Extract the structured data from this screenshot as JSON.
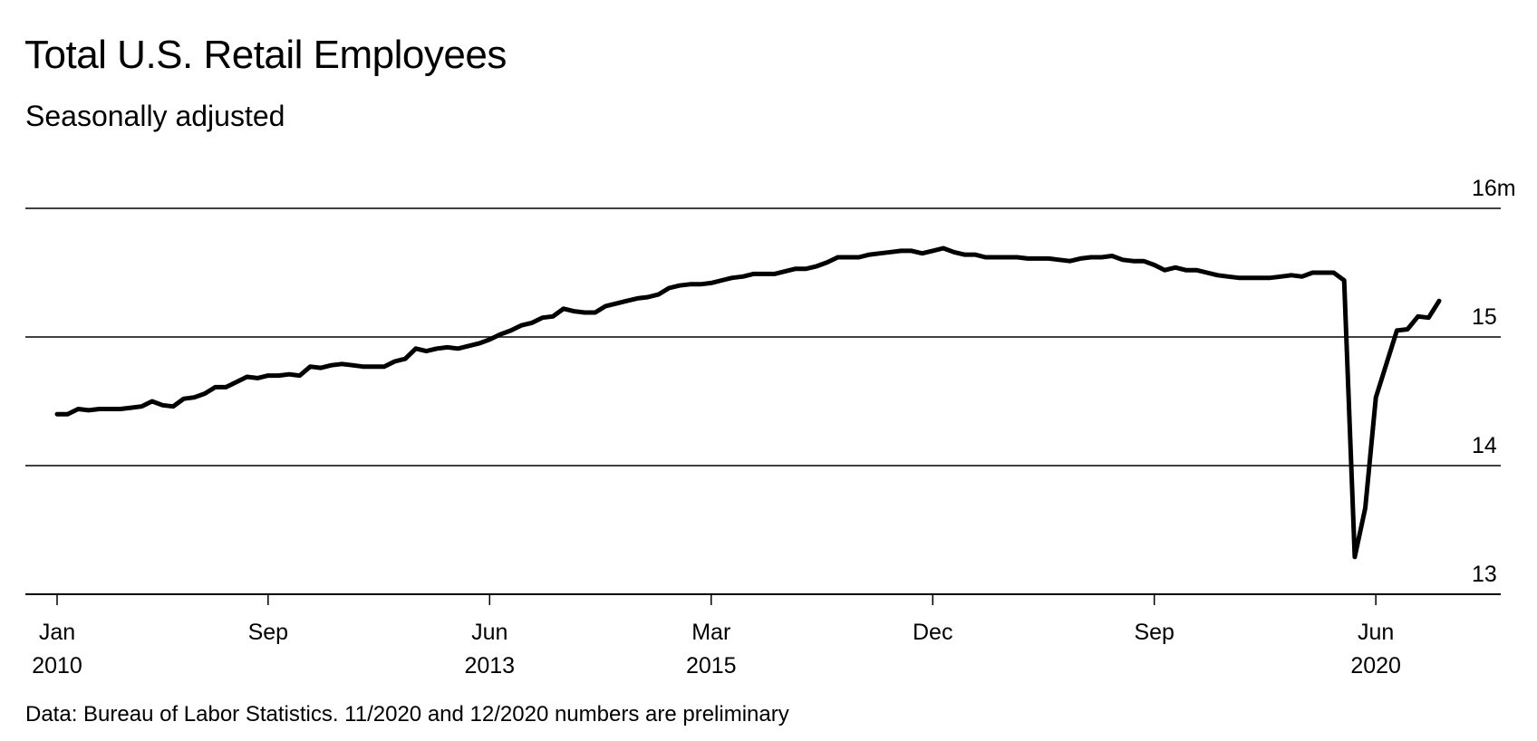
{
  "title": "Total U.S. Retail Employees",
  "subtitle": "Seasonally adjusted",
  "footer": "Data: Bureau of Labor Statistics. 11/2020 and 12/2020 numbers are preliminary",
  "chart_data": {
    "type": "line",
    "title": "Total U.S. Retail Employees",
    "subtitle": "Seasonally adjusted",
    "ylim": [
      13,
      16
    ],
    "y_ticks": [
      {
        "value": 16,
        "label": "16m"
      },
      {
        "value": 15,
        "label": "15"
      },
      {
        "value": 14,
        "label": "14"
      },
      {
        "value": 13,
        "label": "13"
      }
    ],
    "grid": true,
    "x_start": "2010-01",
    "x_end": "2020-12",
    "x_ticks": [
      {
        "date": "2010-01",
        "line1": "Jan",
        "line2": "2010"
      },
      {
        "date": "2011-09",
        "line1": "Sep",
        "line2": ""
      },
      {
        "date": "2013-06",
        "line1": "Jun",
        "line2": "2013"
      },
      {
        "date": "2015-03",
        "line1": "Mar",
        "line2": "2015"
      },
      {
        "date": "2016-12",
        "line1": "Dec",
        "line2": ""
      },
      {
        "date": "2018-09",
        "line1": "Sep",
        "line2": ""
      },
      {
        "date": "2020-06",
        "line1": "Jun",
        "line2": "2020"
      }
    ],
    "series": [
      {
        "color": "#000000",
        "points": [
          [
            "2010-01",
            14.4
          ],
          [
            "2010-02",
            14.4
          ],
          [
            "2010-03",
            14.44
          ],
          [
            "2010-04",
            14.43
          ],
          [
            "2010-05",
            14.44
          ],
          [
            "2010-06",
            14.44
          ],
          [
            "2010-07",
            14.44
          ],
          [
            "2010-08",
            14.45
          ],
          [
            "2010-09",
            14.46
          ],
          [
            "2010-10",
            14.5
          ],
          [
            "2010-11",
            14.47
          ],
          [
            "2010-12",
            14.46
          ],
          [
            "2011-01",
            14.52
          ],
          [
            "2011-02",
            14.53
          ],
          [
            "2011-03",
            14.56
          ],
          [
            "2011-04",
            14.61
          ],
          [
            "2011-05",
            14.61
          ],
          [
            "2011-06",
            14.65
          ],
          [
            "2011-07",
            14.69
          ],
          [
            "2011-08",
            14.68
          ],
          [
            "2011-09",
            14.7
          ],
          [
            "2011-10",
            14.7
          ],
          [
            "2011-11",
            14.71
          ],
          [
            "2011-12",
            14.7
          ],
          [
            "2012-01",
            14.77
          ],
          [
            "2012-02",
            14.76
          ],
          [
            "2012-03",
            14.78
          ],
          [
            "2012-04",
            14.79
          ],
          [
            "2012-05",
            14.78
          ],
          [
            "2012-06",
            14.77
          ],
          [
            "2012-07",
            14.77
          ],
          [
            "2012-08",
            14.77
          ],
          [
            "2012-09",
            14.81
          ],
          [
            "2012-10",
            14.83
          ],
          [
            "2012-11",
            14.91
          ],
          [
            "2012-12",
            14.89
          ],
          [
            "2013-01",
            14.91
          ],
          [
            "2013-02",
            14.92
          ],
          [
            "2013-03",
            14.91
          ],
          [
            "2013-04",
            14.93
          ],
          [
            "2013-05",
            14.95
          ],
          [
            "2013-06",
            14.98
          ],
          [
            "2013-07",
            15.02
          ],
          [
            "2013-08",
            15.05
          ],
          [
            "2013-09",
            15.09
          ],
          [
            "2013-10",
            15.11
          ],
          [
            "2013-11",
            15.15
          ],
          [
            "2013-12",
            15.16
          ],
          [
            "2014-01",
            15.22
          ],
          [
            "2014-02",
            15.2
          ],
          [
            "2014-03",
            15.19
          ],
          [
            "2014-04",
            15.19
          ],
          [
            "2014-05",
            15.24
          ],
          [
            "2014-06",
            15.26
          ],
          [
            "2014-07",
            15.28
          ],
          [
            "2014-08",
            15.3
          ],
          [
            "2014-09",
            15.31
          ],
          [
            "2014-10",
            15.33
          ],
          [
            "2014-11",
            15.38
          ],
          [
            "2014-12",
            15.4
          ],
          [
            "2015-01",
            15.41
          ],
          [
            "2015-02",
            15.41
          ],
          [
            "2015-03",
            15.42
          ],
          [
            "2015-04",
            15.44
          ],
          [
            "2015-05",
            15.46
          ],
          [
            "2015-06",
            15.47
          ],
          [
            "2015-07",
            15.49
          ],
          [
            "2015-08",
            15.49
          ],
          [
            "2015-09",
            15.49
          ],
          [
            "2015-10",
            15.51
          ],
          [
            "2015-11",
            15.53
          ],
          [
            "2015-12",
            15.53
          ],
          [
            "2016-01",
            15.55
          ],
          [
            "2016-02",
            15.58
          ],
          [
            "2016-03",
            15.62
          ],
          [
            "2016-04",
            15.62
          ],
          [
            "2016-05",
            15.62
          ],
          [
            "2016-06",
            15.64
          ],
          [
            "2016-07",
            15.65
          ],
          [
            "2016-08",
            15.66
          ],
          [
            "2016-09",
            15.67
          ],
          [
            "2016-10",
            15.67
          ],
          [
            "2016-11",
            15.65
          ],
          [
            "2016-12",
            15.67
          ],
          [
            "2017-01",
            15.69
          ],
          [
            "2017-02",
            15.66
          ],
          [
            "2017-03",
            15.64
          ],
          [
            "2017-04",
            15.64
          ],
          [
            "2017-05",
            15.62
          ],
          [
            "2017-06",
            15.62
          ],
          [
            "2017-07",
            15.62
          ],
          [
            "2017-08",
            15.62
          ],
          [
            "2017-09",
            15.61
          ],
          [
            "2017-10",
            15.61
          ],
          [
            "2017-11",
            15.61
          ],
          [
            "2017-12",
            15.6
          ],
          [
            "2018-01",
            15.59
          ],
          [
            "2018-02",
            15.61
          ],
          [
            "2018-03",
            15.62
          ],
          [
            "2018-04",
            15.62
          ],
          [
            "2018-05",
            15.63
          ],
          [
            "2018-06",
            15.6
          ],
          [
            "2018-07",
            15.59
          ],
          [
            "2018-08",
            15.59
          ],
          [
            "2018-09",
            15.56
          ],
          [
            "2018-10",
            15.52
          ],
          [
            "2018-11",
            15.54
          ],
          [
            "2018-12",
            15.52
          ],
          [
            "2019-01",
            15.52
          ],
          [
            "2019-02",
            15.5
          ],
          [
            "2019-03",
            15.48
          ],
          [
            "2019-04",
            15.47
          ],
          [
            "2019-05",
            15.46
          ],
          [
            "2019-06",
            15.46
          ],
          [
            "2019-07",
            15.46
          ],
          [
            "2019-08",
            15.46
          ],
          [
            "2019-09",
            15.47
          ],
          [
            "2019-10",
            15.48
          ],
          [
            "2019-11",
            15.47
          ],
          [
            "2019-12",
            15.5
          ],
          [
            "2020-01",
            15.5
          ],
          [
            "2020-02",
            15.5
          ],
          [
            "2020-03",
            15.44
          ],
          [
            "2020-04",
            13.29
          ],
          [
            "2020-05",
            13.67
          ],
          [
            "2020-06",
            14.53
          ],
          [
            "2020-07",
            14.79
          ],
          [
            "2020-08",
            15.05
          ],
          [
            "2020-09",
            15.06
          ],
          [
            "2020-10",
            15.16
          ],
          [
            "2020-11",
            15.15
          ],
          [
            "2020-12",
            15.28
          ]
        ]
      }
    ]
  }
}
